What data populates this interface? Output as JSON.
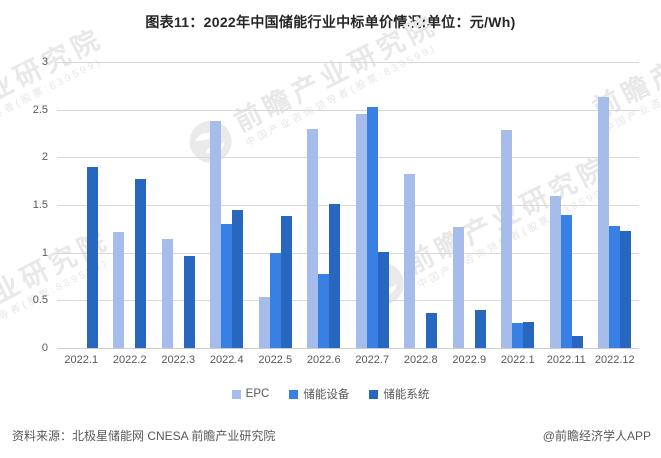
{
  "title": "图表11：2022年中国储能行业中标单价情况(单位：元/Wh)",
  "footer": {
    "source": "资料来源：北极星储能网 CNESA 前瞻产业研究院",
    "credit": "@前瞻经济学人APP"
  },
  "watermark": {
    "big": "前瞻产业研究院",
    "small": "中国产业咨询领导者(股票:839599)"
  },
  "chart_data": {
    "type": "bar",
    "title": "图表11：2022年中国储能行业中标单价情况(单位：元/Wh)",
    "unit": "元/Wh",
    "categories": [
      "2022.1",
      "2022.2",
      "2022.3",
      "2022.4",
      "2022.5",
      "2022.6",
      "2022.7",
      "2022.8",
      "2022.9",
      "2022.1",
      "2022.11",
      "2022.12"
    ],
    "series": [
      {
        "name": "EPC",
        "color": "#a6bdec",
        "values": [
          null,
          1.22,
          1.14,
          2.38,
          0.54,
          2.3,
          2.45,
          1.83,
          1.27,
          2.29,
          1.59,
          2.63
        ]
      },
      {
        "name": "储能设备",
        "color": "#3980e4",
        "values": [
          null,
          null,
          null,
          1.3,
          1.0,
          0.78,
          2.53,
          null,
          null,
          0.26,
          1.4,
          1.28
        ]
      },
      {
        "name": "储能系统",
        "color": "#2767c0",
        "values": [
          1.9,
          1.77,
          0.97,
          1.45,
          1.39,
          1.51,
          1.01,
          0.37,
          0.4,
          0.27,
          0.13,
          1.23
        ]
      }
    ],
    "ylim": [
      0,
      3
    ],
    "yticks": [
      "3",
      "2.5",
      "2",
      "1.5",
      "1",
      "0.5",
      "0"
    ],
    "grid": true,
    "legend_position": "bottom",
    "xlabel": "",
    "ylabel": ""
  }
}
